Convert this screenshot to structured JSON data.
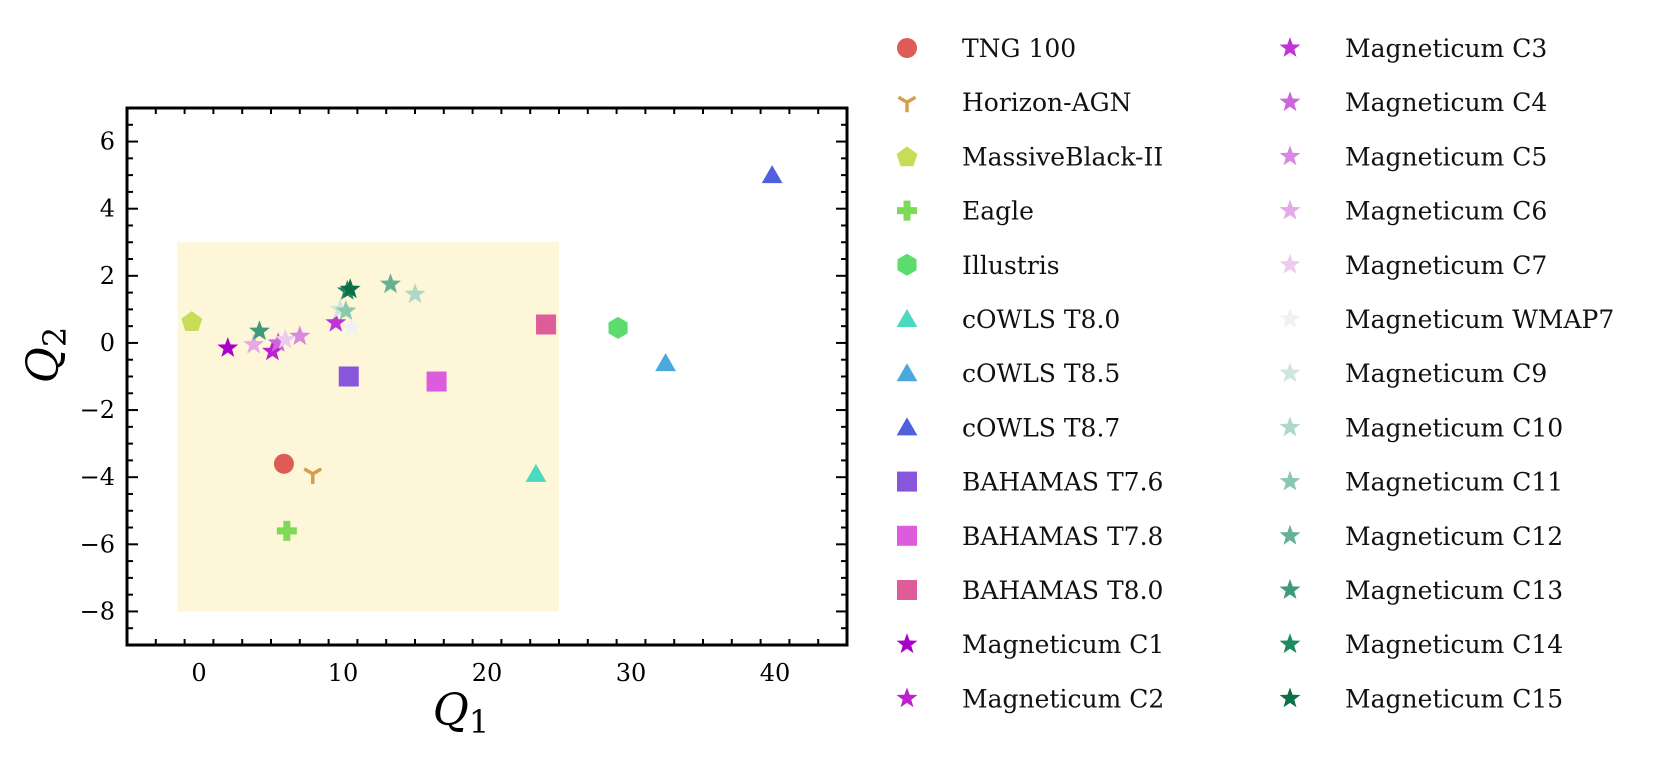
{
  "chart_data": {
    "type": "scatter",
    "title": "",
    "xlabel": "Q",
    "xlabel_sub": "1",
    "ylabel": "Q",
    "ylabel_sub": "2",
    "xlim": [
      -5,
      45
    ],
    "ylim": [
      -9,
      7
    ],
    "xticks": [
      0,
      10,
      20,
      30,
      40
    ],
    "yticks": [
      6,
      4,
      2,
      0,
      -2,
      -4,
      -6,
      -8
    ],
    "xtick_labels": [
      "0",
      "10",
      "20",
      "30",
      "40"
    ],
    "ytick_labels": [
      "6",
      "4",
      "2",
      "0",
      "−2",
      "−4",
      "−6",
      "−8"
    ],
    "grid": false,
    "legend_position": "right, two columns",
    "shaded_region": {
      "x": [
        -1.5,
        25
      ],
      "y": [
        -8,
        3
      ],
      "color": "#fdf6d8"
    },
    "series": [
      {
        "name": "TNG 100",
        "marker": "circle",
        "color": "#dd5c55",
        "x": 5.9,
        "y": -3.6
      },
      {
        "name": "Horizon-AGN",
        "marker": "tri",
        "color": "#d4a050",
        "x": 7.9,
        "y": -3.9
      },
      {
        "name": "MassiveBlack-II",
        "marker": "pentagon",
        "color": "#c8dc5a",
        "x": -0.5,
        "y": 0.65
      },
      {
        "name": "Eagle",
        "marker": "plus",
        "color": "#7ed957",
        "x": 6.1,
        "y": -5.6
      },
      {
        "name": "Illustris",
        "marker": "hexagon",
        "color": "#5ddc6e",
        "x": 29.1,
        "y": 0.45
      },
      {
        "name": "cOWLS T8.0",
        "marker": "triangle",
        "color": "#4dd8c0",
        "x": 23.4,
        "y": -3.9
      },
      {
        "name": "cOWLS T8.5",
        "marker": "triangle",
        "color": "#4aa8dc",
        "x": 32.4,
        "y": -0.6
      },
      {
        "name": "cOWLS T8.7",
        "marker": "triangle",
        "color": "#5060dc",
        "x": 39.8,
        "y": 5.0
      },
      {
        "name": "BAHAMAS T7.6",
        "marker": "square",
        "color": "#8855dd",
        "x": 10.4,
        "y": -1.0
      },
      {
        "name": "BAHAMAS T7.8",
        "marker": "square",
        "color": "#dd5cdd",
        "x": 16.5,
        "y": -1.15
      },
      {
        "name": "BAHAMAS T8.0",
        "marker": "square",
        "color": "#dd5c99",
        "x": 24.1,
        "y": 0.55
      },
      {
        "name": "Magneticum C1",
        "marker": "star",
        "color": "#aa00cc",
        "x": 2.0,
        "y": -0.15
      },
      {
        "name": "Magneticum C2",
        "marker": "star",
        "color": "#bb22cc",
        "x": 5.1,
        "y": -0.25
      },
      {
        "name": "Magneticum C3",
        "marker": "star",
        "color": "#c033d6",
        "x": 9.5,
        "y": 0.6
      },
      {
        "name": "Magneticum C4",
        "marker": "star",
        "color": "#cc66dd",
        "x": 5.5,
        "y": 0.0
      },
      {
        "name": "Magneticum C5",
        "marker": "star",
        "color": "#d888e0",
        "x": 7.0,
        "y": 0.2
      },
      {
        "name": "Magneticum C6",
        "marker": "star",
        "color": "#e4aae6",
        "x": 3.8,
        "y": -0.05
      },
      {
        "name": "Magneticum C7",
        "marker": "star",
        "color": "#ecccee",
        "x": 6.0,
        "y": 0.1
      },
      {
        "name": "Magneticum WMAP7",
        "marker": "star",
        "color": "#eef2f0",
        "x": 10.6,
        "y": 0.45
      },
      {
        "name": "Magneticum C9",
        "marker": "star",
        "color": "#cfe6df",
        "x": 9.8,
        "y": 1.0
      },
      {
        "name": "Magneticum C10",
        "marker": "star",
        "color": "#aed8c8",
        "x": 15.0,
        "y": 1.45
      },
      {
        "name": "Magneticum C11",
        "marker": "star",
        "color": "#8cc8b0",
        "x": 10.2,
        "y": 0.95
      },
      {
        "name": "Magneticum C12",
        "marker": "star",
        "color": "#66b096",
        "x": 13.3,
        "y": 1.75
      },
      {
        "name": "Magneticum C13",
        "marker": "star",
        "color": "#3e9a7c",
        "x": 4.2,
        "y": 0.35
      },
      {
        "name": "Magneticum C14",
        "marker": "star",
        "color": "#1e8a60",
        "x": 10.3,
        "y": 1.55
      },
      {
        "name": "Magneticum C15",
        "marker": "star",
        "color": "#0a7048",
        "x": 10.5,
        "y": 1.6
      }
    ]
  }
}
